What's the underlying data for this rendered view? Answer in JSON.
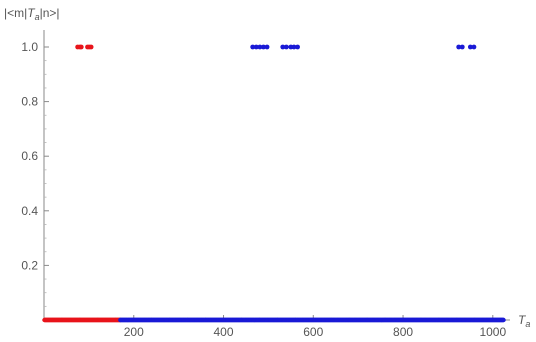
{
  "chart_data": {
    "type": "scatter",
    "title": "",
    "ylabel": "|<m|T_a|n>|",
    "ylabel_parts": {
      "pre": "|<m|",
      "var": "T",
      "sub": "a",
      "post": "|n>|"
    },
    "xlabel": "T_a",
    "xlabel_parts": {
      "var": "T",
      "sub": "a"
    },
    "xlim": [
      0,
      1024
    ],
    "ylim": [
      0,
      1.05
    ],
    "x_ticks": [
      200,
      400,
      600,
      800,
      1000
    ],
    "x_tick_labels": [
      "200",
      "400",
      "600",
      "800",
      "1000"
    ],
    "y_ticks": [
      0.2,
      0.4,
      0.6,
      0.8,
      1.0
    ],
    "y_tick_labels": [
      "0.2",
      "0.4",
      "0.6",
      "0.8",
      "1.0"
    ],
    "grid": false,
    "colors": {
      "red": "#e8141b",
      "blue": "#1a1ad6"
    },
    "series": [
      {
        "color": "red",
        "values_at_one": [
          75,
          80,
          83,
          97,
          101,
          105
        ],
        "zero_range": [
          1,
          170
        ]
      },
      {
        "color": "blue",
        "values_at_one": [
          465,
          473,
          481,
          489,
          497,
          532,
          540,
          550,
          557,
          565,
          924,
          932,
          950,
          958
        ],
        "zero_range": [
          170,
          1024
        ]
      }
    ]
  }
}
